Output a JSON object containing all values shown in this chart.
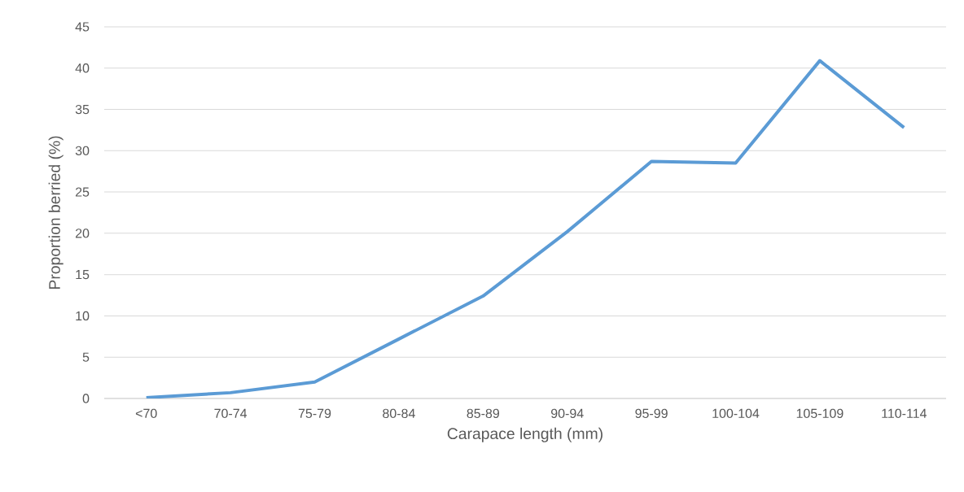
{
  "chart_data": {
    "type": "line",
    "xlabel": "Carapace length (mm)",
    "ylabel": "Proportion berried (%)",
    "categories": [
      "<70",
      "70-74",
      "75-79",
      "80-84",
      "85-89",
      "90-94",
      "95-99",
      "100-104",
      "105-109",
      "110-114"
    ],
    "series": [
      {
        "color": "#5b9bd5",
        "values": [
          0.1,
          0.7,
          2.0,
          7.2,
          12.4,
          20.2,
          28.7,
          28.5,
          40.9,
          32.8
        ]
      }
    ],
    "ylim": [
      0,
      45
    ],
    "yticks": [
      0,
      5,
      10,
      15,
      20,
      25,
      30,
      35,
      40,
      45
    ],
    "grid": "y",
    "marker": "none",
    "line_style": "solid"
  }
}
